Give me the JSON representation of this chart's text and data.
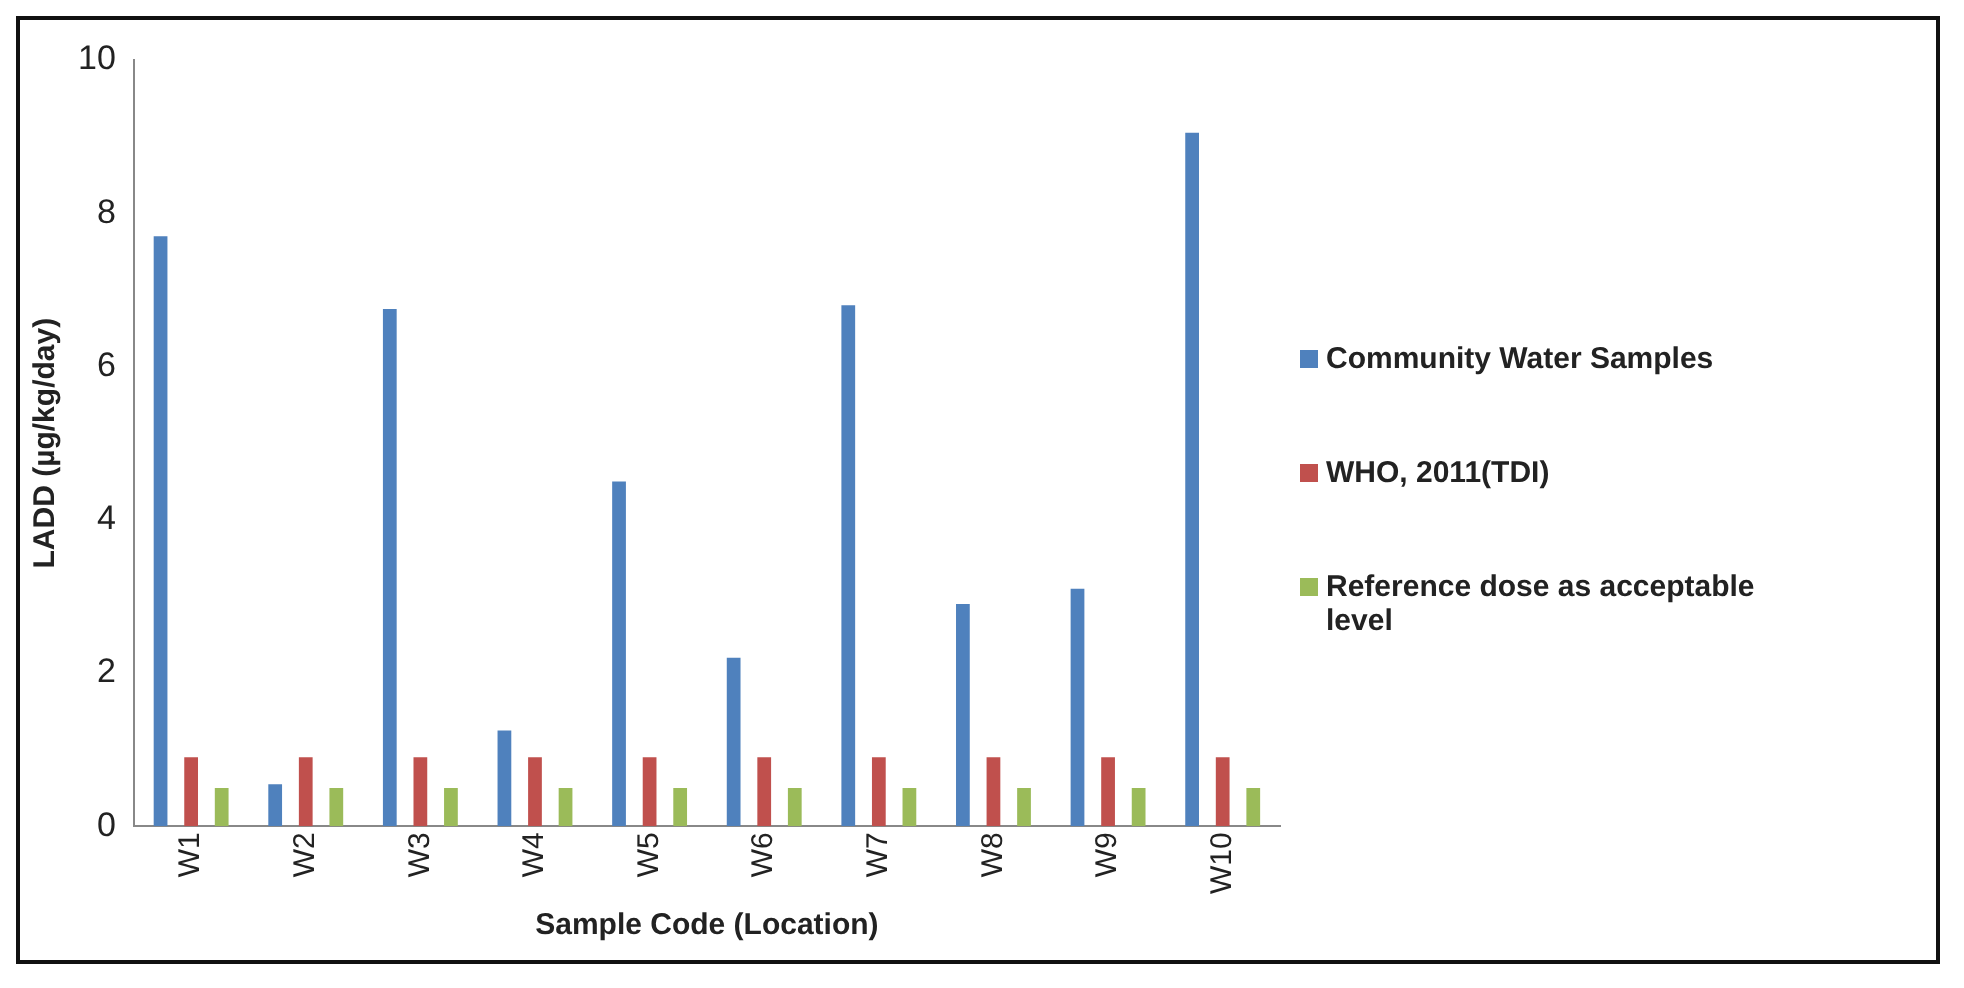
{
  "chart_data": {
    "type": "bar",
    "xlabel": "Sample Code (Location)",
    "ylabel": "LADD (µg/kg/day)",
    "categories": [
      "W1",
      "W2",
      "W3",
      "W4",
      "W5",
      "W6",
      "W7",
      "W8",
      "W9",
      "W10"
    ],
    "series": [
      {
        "name": "Community Water Samples",
        "color": "#4f81bd",
        "values": [
          7.7,
          0.55,
          6.75,
          1.25,
          4.5,
          2.2,
          6.8,
          2.9,
          3.1,
          9.05
        ]
      },
      {
        "name": "WHO, 2011(TDI)",
        "color": "#c0504d",
        "values": [
          0.9,
          0.9,
          0.9,
          0.9,
          0.9,
          0.9,
          0.9,
          0.9,
          0.9,
          0.9
        ]
      },
      {
        "name": "Reference dose as acceptable level",
        "color": "#9bbb59",
        "values": [
          0.5,
          0.5,
          0.5,
          0.5,
          0.5,
          0.5,
          0.5,
          0.5,
          0.5,
          0.5
        ]
      }
    ],
    "ylim": [
      0,
      10
    ],
    "yticks": [
      0,
      2,
      4,
      6,
      8,
      10
    ],
    "grid": false,
    "legend": "right"
  }
}
